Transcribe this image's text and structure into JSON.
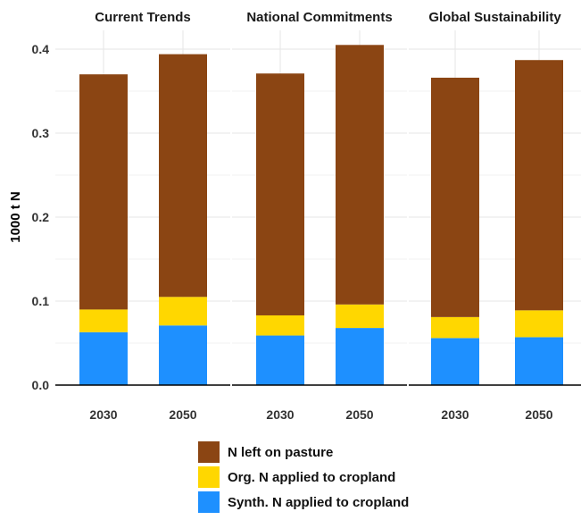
{
  "chart_data": {
    "type": "bar",
    "stacked": true,
    "ylabel": "1000 t N",
    "ylim": [
      0,
      0.42
    ],
    "yticks": [
      "0.0",
      "0.1",
      "0.2",
      "0.3",
      "0.4"
    ],
    "ytick_values": [
      0,
      0.1,
      0.2,
      0.3,
      0.4
    ],
    "grid": true,
    "legend_position": "bottom",
    "panels": [
      {
        "title": "Current Trends",
        "categories": [
          "2030",
          "2050"
        ],
        "series": [
          {
            "name": "Synth. N applied to cropland",
            "values": [
              0.063,
              0.071
            ]
          },
          {
            "name": "Org. N applied to cropland",
            "values": [
              0.027,
              0.034
            ]
          },
          {
            "name": "N left on pasture",
            "values": [
              0.28,
              0.289
            ]
          }
        ]
      },
      {
        "title": "National Commitments",
        "categories": [
          "2030",
          "2050"
        ],
        "series": [
          {
            "name": "Synth. N applied to cropland",
            "values": [
              0.059,
              0.068
            ]
          },
          {
            "name": "Org. N applied to cropland",
            "values": [
              0.024,
              0.028
            ]
          },
          {
            "name": "N left on pasture",
            "values": [
              0.288,
              0.309
            ]
          }
        ]
      },
      {
        "title": "Global Sustainability",
        "categories": [
          "2030",
          "2050"
        ],
        "series": [
          {
            "name": "Synth. N applied to cropland",
            "values": [
              0.056,
              0.057
            ]
          },
          {
            "name": "Org. N applied to cropland",
            "values": [
              0.025,
              0.032
            ]
          },
          {
            "name": "N left on pasture",
            "values": [
              0.285,
              0.298
            ]
          }
        ]
      }
    ],
    "colors": {
      "N left on pasture": "#8B4513",
      "Org. N applied to cropland": "#FFD700",
      "Synth. N applied to cropland": "#1E90FF"
    }
  },
  "legend": {
    "items": [
      {
        "label": "N left on pasture",
        "color": "#8B4513"
      },
      {
        "label": "Org. N applied to cropland",
        "color": "#FFD700"
      },
      {
        "label": "Synth. N applied to cropland",
        "color": "#1E90FF"
      }
    ]
  }
}
